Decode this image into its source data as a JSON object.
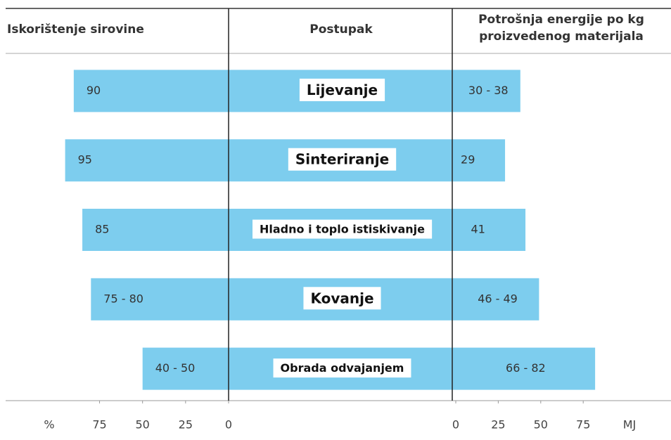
{
  "chart_data": {
    "type": "butterfly-bar",
    "headers": [
      "Iskorištenje sirovine",
      "Postupak",
      "Potrošnja energije po kg proizvedenog materijala"
    ],
    "categories": [
      "Lijevanje",
      "Sinteriranje",
      "Hladno i toplo istiskivanje",
      "Kovanje",
      "Obrada odvajanjem"
    ],
    "series": [
      {
        "name": "Iskorištenje sirovine",
        "color": "#7dcdee",
        "values": [
          90,
          95,
          85,
          80,
          50
        ],
        "low": [
          90,
          95,
          85,
          75,
          40
        ],
        "value_labels": [
          "90",
          "95",
          "85",
          "75 - 80",
          "40 - 50"
        ]
      },
      {
        "name": "Potrošnja energije po kg proizvedenog materijala",
        "color": "#7dcdee",
        "values": [
          38,
          29,
          41,
          49,
          82
        ],
        "low": [
          30,
          29,
          41,
          46,
          66
        ],
        "value_labels": [
          "30 - 38",
          "29",
          "41",
          "46 - 49",
          "66 - 82"
        ]
      }
    ],
    "xlim": [
      0,
      130
    ],
    "xticks": [
      75,
      50,
      25,
      0
    ],
    "x_unit": "%",
    "x2lim": [
      0,
      125
    ],
    "x2ticks": [
      0,
      25,
      50,
      75
    ],
    "x2_unit": "MJ"
  }
}
